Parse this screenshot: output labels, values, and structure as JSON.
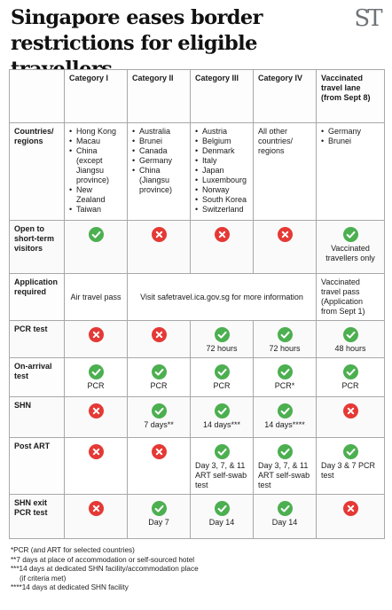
{
  "header": {
    "title": "Singapore eases border restrictions for eligible travellers",
    "logo_text": "ST"
  },
  "table": {
    "columns": [
      "",
      "Category I",
      "Category II",
      "Category III",
      "Category IV",
      "Vaccinated travel lane (from Sept 8)"
    ],
    "countries": {
      "label": "Countries/ regions",
      "cat1": [
        "Hong Kong",
        "Macau",
        "China (except Jiangsu province)",
        "New Zealand",
        "Taiwan"
      ],
      "cat2": [
        "Australia",
        "Brunei",
        "Canada",
        "Germany",
        "China (Jiangsu province)"
      ],
      "cat3": [
        "Austria",
        "Belgium",
        "Denmark",
        "Italy",
        "Japan",
        "Luxembourg",
        "Norway",
        "South Korea",
        "Switzerland"
      ],
      "cat4": "All other countries/ regions",
      "vtl": [
        "Germany",
        "Brunei"
      ]
    },
    "visitors": {
      "label": "Open to short-term visitors",
      "values": [
        "yes",
        "no",
        "no",
        "no",
        "yes"
      ],
      "vtl_note": "Vaccinated travellers only"
    },
    "application": {
      "label": "Application required",
      "cat1": "Air travel pass",
      "merged": "Visit safetravel.ica.gov.sg for more information",
      "vtl": "Vaccinated travel pass (Application from Sept 1)"
    },
    "pcr": {
      "label": "PCR test",
      "values": [
        "no",
        "no",
        "yes",
        "yes",
        "yes"
      ],
      "notes": [
        "",
        "",
        "72 hours",
        "72 hours",
        "48 hours"
      ]
    },
    "arrival": {
      "label": "On-arrival test",
      "values": [
        "yes",
        "yes",
        "yes",
        "yes",
        "yes"
      ],
      "notes": [
        "PCR",
        "PCR",
        "PCR",
        "PCR*",
        "PCR"
      ]
    },
    "shn": {
      "label": "SHN",
      "values": [
        "no",
        "yes",
        "yes",
        "yes",
        "no"
      ],
      "notes": [
        "",
        "7 days**",
        "14 days***",
        "14 days****",
        ""
      ]
    },
    "post_art": {
      "label": "Post ART",
      "values": [
        "no",
        "no",
        "yes",
        "yes",
        "yes"
      ],
      "notes": [
        "",
        "",
        "Day 3, 7, & 11 ART self-swab test",
        "Day 3, 7, & 11 ART self-swab test",
        "Day 3 & 7 PCR test"
      ]
    },
    "shn_exit": {
      "label": "SHN exit PCR test",
      "values": [
        "no",
        "yes",
        "yes",
        "yes",
        "no"
      ],
      "notes": [
        "",
        "Day 7",
        "Day 14",
        "Day 14",
        ""
      ]
    }
  },
  "footnotes": [
    "*PCR (and ART for selected countries)",
    "**7 days at place of accommodation or self-sourced hotel",
    "***14 days at dedicated SHN facility/accommodation place",
    "(if criteria met)",
    "****14 days at dedicated SHN facility"
  ],
  "colors": {
    "yes": "#4caf50",
    "no": "#e53935"
  }
}
